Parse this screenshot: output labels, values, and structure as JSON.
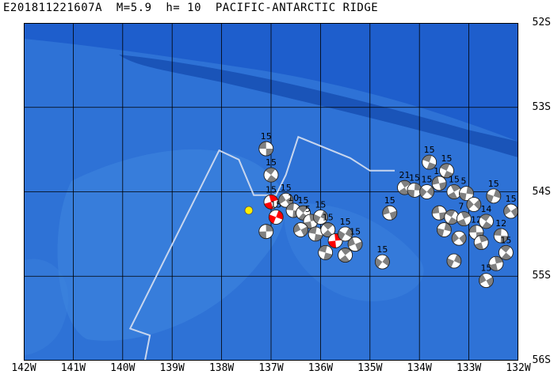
{
  "header": {
    "title": "E201811221607A  M=5.9  h= 10  PACIFIC-ANTARCTIC RIDGE"
  },
  "map": {
    "lon_range": [
      -142,
      -132
    ],
    "lat_range": [
      -56,
      -52
    ],
    "lat_labels": [
      "52S",
      "53S",
      "54S",
      "55S",
      "56S"
    ],
    "lon_labels": [
      "142W",
      "141W",
      "140W",
      "139W",
      "138W",
      "137W",
      "136W",
      "135W",
      "134W",
      "133W",
      "132W"
    ],
    "colors": {
      "ocean_deep": "#1e5ecc",
      "ocean_mid": "#2e72d6",
      "ocean_shallow": "#3f86e0",
      "trench": "#1a54b8",
      "grid": "#000000",
      "boundary": "#c8d6ee",
      "epicenter": "#ffee00",
      "mechanism_dark": "#808080",
      "mechanism_light": "#ffffff",
      "mechanism_main": "#ff0000"
    },
    "epicenter": {
      "lon": -137.45,
      "lat": -54.22
    },
    "plate_boundary": [
      [
        -139.55,
        -56.0
      ],
      [
        -139.45,
        -55.7
      ],
      [
        -139.85,
        -55.62
      ],
      [
        -138.05,
        -53.51
      ],
      [
        -137.65,
        -53.62
      ],
      [
        -137.35,
        -54.04
      ],
      [
        -136.9,
        -54.04
      ],
      [
        -136.7,
        -53.8
      ],
      [
        -136.45,
        -53.35
      ],
      [
        -135.4,
        -53.6
      ],
      [
        -135.0,
        -53.75
      ],
      [
        -134.5,
        -53.75
      ]
    ],
    "mechanisms": [
      {
        "lon": -137.1,
        "lat": -53.49,
        "label": "15"
      },
      {
        "lon": -137.0,
        "lat": -53.8,
        "label": "15"
      },
      {
        "lon": -137.0,
        "lat": -54.12,
        "label": "15",
        "main": true
      },
      {
        "lon": -136.9,
        "lat": -54.3,
        "label": "15",
        "main": true
      },
      {
        "lon": -136.7,
        "lat": -54.1,
        "label": "15"
      },
      {
        "lon": -136.55,
        "lat": -54.22,
        "label": "10"
      },
      {
        "lon": -136.35,
        "lat": -54.25,
        "label": "15"
      },
      {
        "lon": -136.2,
        "lat": -54.35,
        "label": "5"
      },
      {
        "lon": -136.0,
        "lat": -54.3,
        "label": "15"
      },
      {
        "lon": -136.4,
        "lat": -54.45,
        "label": ""
      },
      {
        "lon": -136.1,
        "lat": -54.5,
        "label": ""
      },
      {
        "lon": -135.85,
        "lat": -54.45,
        "label": "15"
      },
      {
        "lon": -135.7,
        "lat": -54.58,
        "label": "",
        "main": true
      },
      {
        "lon": -135.5,
        "lat": -54.5,
        "label": "15"
      },
      {
        "lon": -135.3,
        "lat": -54.62,
        "label": "15"
      },
      {
        "lon": -135.9,
        "lat": -54.72,
        "label": ""
      },
      {
        "lon": -135.5,
        "lat": -54.75,
        "label": ""
      },
      {
        "lon": -137.1,
        "lat": -54.47,
        "label": ""
      },
      {
        "lon": -134.75,
        "lat": -54.83,
        "label": "15"
      },
      {
        "lon": -134.6,
        "lat": -54.25,
        "label": "15"
      },
      {
        "lon": -133.8,
        "lat": -53.65,
        "label": "15"
      },
      {
        "lon": -134.3,
        "lat": -53.95,
        "label": "21"
      },
      {
        "lon": -134.1,
        "lat": -53.98,
        "label": "15"
      },
      {
        "lon": -133.85,
        "lat": -54.0,
        "label": "15"
      },
      {
        "lon": -133.6,
        "lat": -53.9,
        "label": "15"
      },
      {
        "lon": -133.45,
        "lat": -53.75,
        "label": "15"
      },
      {
        "lon": -133.3,
        "lat": -54.0,
        "label": "15"
      },
      {
        "lon": -133.05,
        "lat": -54.02,
        "label": "5"
      },
      {
        "lon": -132.9,
        "lat": -54.15,
        "label": ""
      },
      {
        "lon": -133.6,
        "lat": -54.25,
        "label": ""
      },
      {
        "lon": -133.35,
        "lat": -54.3,
        "label": ""
      },
      {
        "lon": -133.1,
        "lat": -54.32,
        "label": "7"
      },
      {
        "lon": -133.5,
        "lat": -54.45,
        "label": ""
      },
      {
        "lon": -133.2,
        "lat": -54.55,
        "label": ""
      },
      {
        "lon": -132.85,
        "lat": -54.48,
        "label": "12"
      },
      {
        "lon": -132.65,
        "lat": -54.35,
        "label": "14"
      },
      {
        "lon": -132.75,
        "lat": -54.6,
        "label": ""
      },
      {
        "lon": -132.5,
        "lat": -54.05,
        "label": "15"
      },
      {
        "lon": -132.15,
        "lat": -54.23,
        "label": "15"
      },
      {
        "lon": -132.35,
        "lat": -54.52,
        "label": "12"
      },
      {
        "lon": -132.25,
        "lat": -54.72,
        "label": "15"
      },
      {
        "lon": -132.45,
        "lat": -54.85,
        "label": ""
      },
      {
        "lon": -133.3,
        "lat": -54.82,
        "label": ""
      },
      {
        "lon": -132.65,
        "lat": -55.05,
        "label": "15"
      }
    ]
  }
}
